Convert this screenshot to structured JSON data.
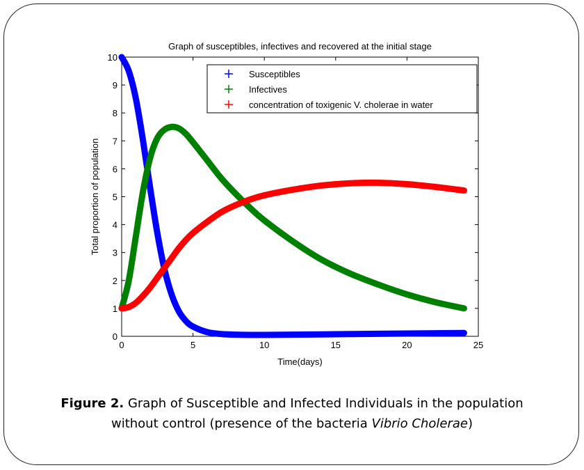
{
  "chart_data": {
    "type": "line",
    "title": "Graph of susceptibles, infectives and recovered at the initial stage",
    "xlabel": "Time(days)",
    "ylabel": "Total proportion of population",
    "xlim": [
      0,
      25
    ],
    "ylim": [
      0,
      10
    ],
    "xticks": [
      "0",
      "5",
      "10",
      "15",
      "20",
      "25"
    ],
    "yticks": [
      "0",
      "1",
      "2",
      "3",
      "4",
      "5",
      "6",
      "7",
      "8",
      "9",
      "10"
    ],
    "grid": false,
    "legend": "top-right",
    "x": [
      0,
      0.5,
      1,
      1.5,
      2,
      2.5,
      3,
      3.5,
      4,
      4.5,
      5,
      6,
      7,
      8,
      9,
      10,
      12,
      14,
      16,
      18,
      20,
      22,
      24
    ],
    "series": [
      {
        "name": "Susceptibles",
        "color": "#0000ff",
        "values": [
          10,
          9.5,
          8.5,
          7.0,
          5.3,
          3.7,
          2.4,
          1.5,
          0.9,
          0.55,
          0.35,
          0.15,
          0.08,
          0.06,
          0.05,
          0.05,
          0.06,
          0.07,
          0.08,
          0.09,
          0.1,
          0.11,
          0.12
        ]
      },
      {
        "name": "Infectives",
        "color": "#008000",
        "values": [
          1,
          2.0,
          3.6,
          5.2,
          6.4,
          7.1,
          7.4,
          7.5,
          7.45,
          7.25,
          6.95,
          6.3,
          5.65,
          5.1,
          4.6,
          4.15,
          3.4,
          2.75,
          2.25,
          1.85,
          1.5,
          1.22,
          1.0
        ]
      },
      {
        "name": "concentration of toxigenic V. cholerae in water",
        "color": "#ff0000",
        "values": [
          1,
          1.05,
          1.2,
          1.45,
          1.75,
          2.1,
          2.45,
          2.8,
          3.15,
          3.45,
          3.7,
          4.1,
          4.45,
          4.7,
          4.9,
          5.05,
          5.25,
          5.4,
          5.48,
          5.5,
          5.45,
          5.35,
          5.22
        ]
      }
    ]
  },
  "caption": {
    "label": "Figure 2.",
    "text_line1": " Graph of Susceptible and Infected Individuals in the population",
    "text_line2_a": "without control (presence of the bacteria ",
    "text_line2_italic": "Vibrio Cholerae",
    "text_line2_b": ")"
  }
}
